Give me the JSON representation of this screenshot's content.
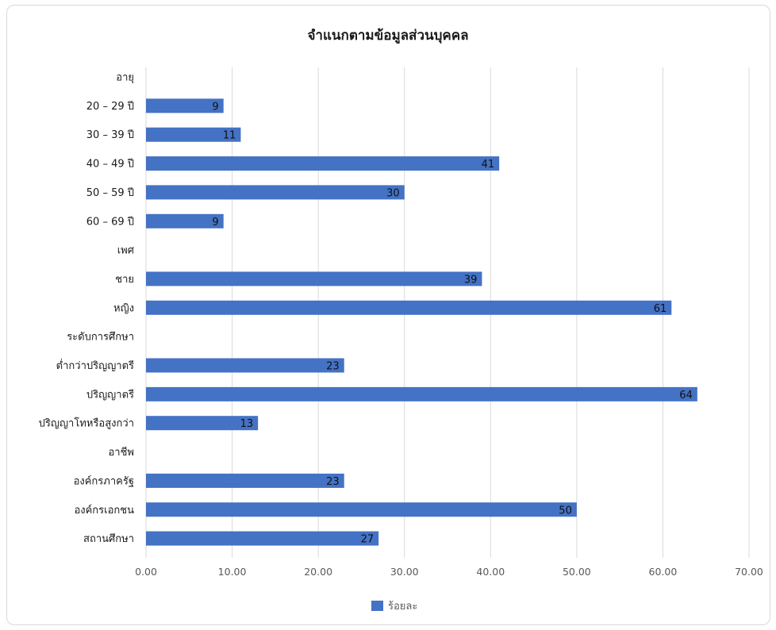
{
  "chart_data": {
    "type": "bar",
    "orientation": "horizontal",
    "title": "จำแนกตามข้อมูลส่วนบุคคล",
    "categories": [
      "อายุ",
      "20 – 29 ปี",
      "30 – 39 ปี",
      "40 – 49 ปี",
      "50 – 59 ปี",
      "60 – 69 ปี",
      "เพศ",
      "ชาย",
      "หญิง",
      "ระดับการศึกษา",
      "ต่ำกว่าปริญญาตรี",
      "ปริญญาตรี",
      "ปริญญาโทหรือสูงกว่า",
      "อาชีพ",
      "องค์กรภาครัฐ",
      "องค์กรเอกชน",
      "สถานศึกษา"
    ],
    "series": [
      {
        "name": "ร้อยละ",
        "color": "#4472c4",
        "values": [
          null,
          9,
          11,
          41,
          30,
          9,
          null,
          39,
          61,
          null,
          23,
          64,
          13,
          null,
          23,
          50,
          27
        ]
      }
    ],
    "xlim": [
      0,
      70
    ],
    "x_ticks": [
      "0.00",
      "10.00",
      "20.00",
      "30.00",
      "40.00",
      "50.00",
      "60.00",
      "70.00"
    ],
    "grid": true,
    "legend_position": "bottom"
  }
}
